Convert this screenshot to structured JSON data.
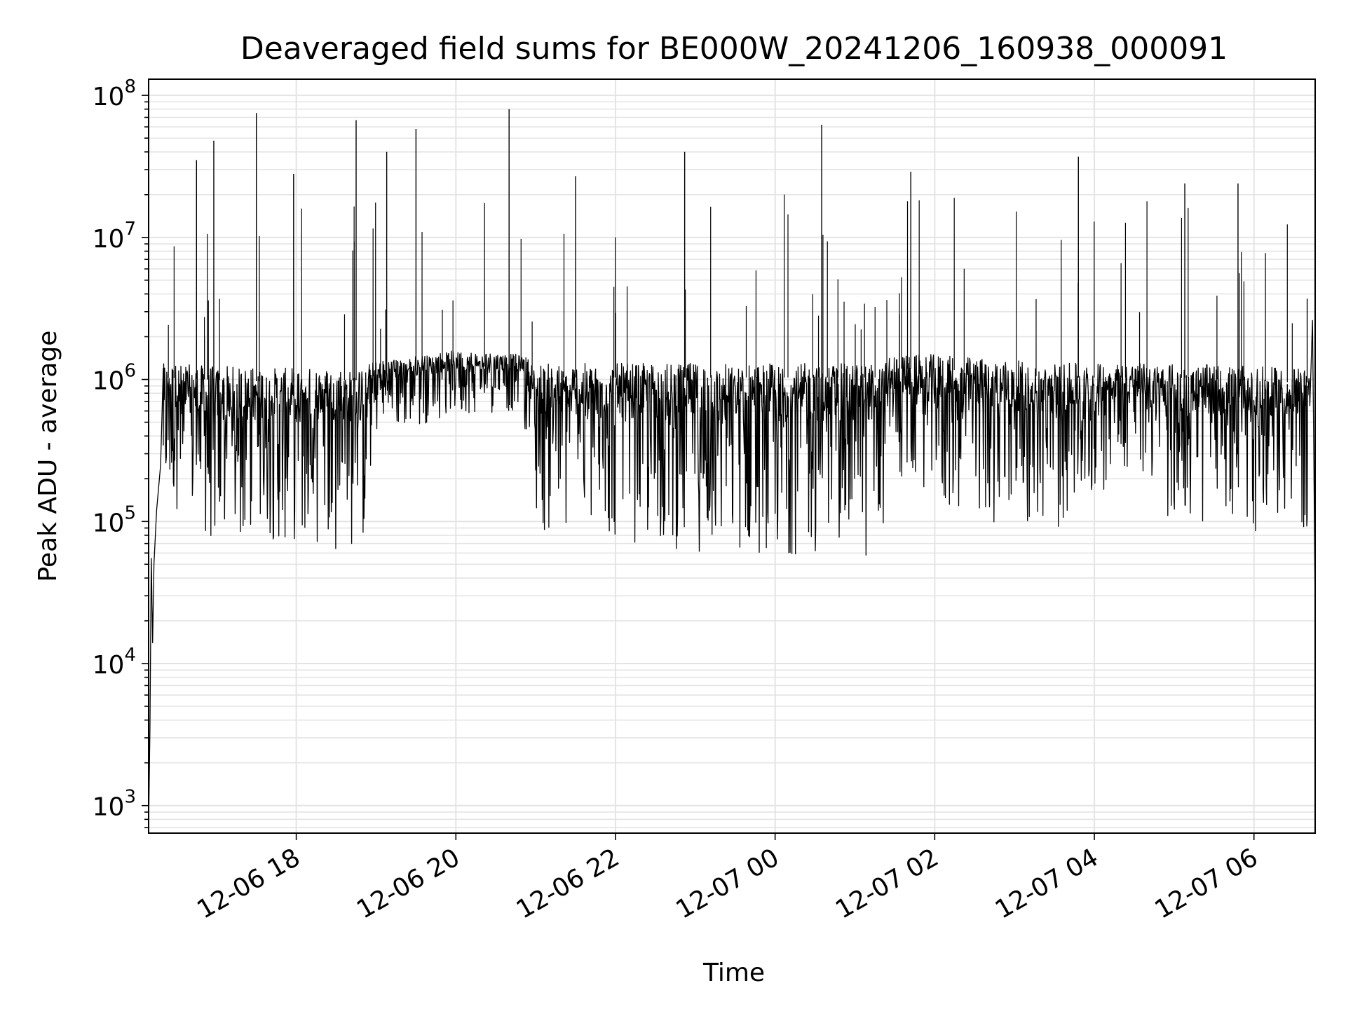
{
  "chart_data": {
    "type": "line",
    "title": "Deaveraged field sums for BE000W_20241206_160938_000091",
    "xlabel": "Time",
    "ylabel": "Peak ADU - average",
    "yscale": "log",
    "ylim": [
      640,
      130000000
    ],
    "xlim": [
      "2024-12-06 16:09",
      "2024-12-07 06:46"
    ],
    "grid": true,
    "line_color": "#000000",
    "x_ticks": [
      {
        "time": "2024-12-06 18:00",
        "label": "12-06 18"
      },
      {
        "time": "2024-12-06 20:00",
        "label": "12-06 20"
      },
      {
        "time": "2024-12-06 22:00",
        "label": "12-06 22"
      },
      {
        "time": "2024-12-07 00:00",
        "label": "12-07 00"
      },
      {
        "time": "2024-12-07 02:00",
        "label": "12-07 02"
      },
      {
        "time": "2024-12-07 04:00",
        "label": "12-07 04"
      },
      {
        "time": "2024-12-07 06:00",
        "label": "12-07 06"
      }
    ],
    "y_ticks": [
      {
        "value": 1000,
        "base": "10",
        "exp": "3"
      },
      {
        "value": 10000,
        "base": "10",
        "exp": "4"
      },
      {
        "value": 100000,
        "base": "10",
        "exp": "5"
      },
      {
        "value": 1000000,
        "base": "10",
        "exp": "6"
      },
      {
        "value": 10000000,
        "base": "10",
        "exp": "7"
      },
      {
        "value": 100000000,
        "base": "10",
        "exp": "8"
      }
    ],
    "series": [
      {
        "values_summary": "dense noisy time series",
        "band": [
          {
            "time": "2024-12-06 16:20",
            "upper": 1300000,
            "lower": 150000
          },
          {
            "time": "2024-12-06 17:00",
            "upper": 1250000,
            "lower": 60000
          },
          {
            "time": "2024-12-06 18:00",
            "upper": 1200000,
            "lower": 70000
          },
          {
            "time": "2024-12-06 18:50",
            "upper": 1250000,
            "lower": 60000
          },
          {
            "time": "2024-12-06 19:00",
            "upper": 1350000,
            "lower": 400000
          },
          {
            "time": "2024-12-06 20:00",
            "upper": 1600000,
            "lower": 550000
          },
          {
            "time": "2024-12-06 20:50",
            "upper": 1500000,
            "lower": 600000
          },
          {
            "time": "2024-12-06 21:00",
            "upper": 1300000,
            "lower": 80000
          },
          {
            "time": "2024-12-06 23:00",
            "upper": 1300000,
            "lower": 60000
          },
          {
            "time": "2024-12-07 01:20",
            "upper": 1300000,
            "lower": 55000
          },
          {
            "time": "2024-12-07 01:30",
            "upper": 1500000,
            "lower": 200000
          },
          {
            "time": "2024-12-07 02:00",
            "upper": 1500000,
            "lower": 120000
          },
          {
            "time": "2024-12-07 03:30",
            "upper": 1300000,
            "lower": 80000
          },
          {
            "time": "2024-12-07 04:30",
            "upper": 1300000,
            "lower": 250000
          },
          {
            "time": "2024-12-07 05:00",
            "upper": 1300000,
            "lower": 90000
          },
          {
            "time": "2024-12-07 06:30",
            "upper": 1200000,
            "lower": 80000
          }
        ],
        "spikes": [
          {
            "time": "2024-12-06 16:45",
            "value": 35000000
          },
          {
            "time": "2024-12-06 16:58",
            "value": 48000000
          },
          {
            "time": "2024-12-06 17:30",
            "value": 75000000
          },
          {
            "time": "2024-12-06 17:58",
            "value": 28000000
          },
          {
            "time": "2024-12-06 18:45",
            "value": 67000000
          },
          {
            "time": "2024-12-06 19:08",
            "value": 40000000
          },
          {
            "time": "2024-12-06 19:30",
            "value": 58000000
          },
          {
            "time": "2024-12-06 20:40",
            "value": 80000000
          },
          {
            "time": "2024-12-06 21:30",
            "value": 27000000
          },
          {
            "time": "2024-12-06 22:52",
            "value": 40000000
          },
          {
            "time": "2024-12-07 00:35",
            "value": 62000000
          },
          {
            "time": "2024-12-07 01:42",
            "value": 29000000
          },
          {
            "time": "2024-12-07 03:48",
            "value": 37000000
          },
          {
            "time": "2024-12-07 05:08",
            "value": 24000000
          },
          {
            "time": "2024-12-07 05:48",
            "value": 24000000
          },
          {
            "time": "2024-12-07 06:40",
            "value": 3700000
          }
        ]
      }
    ]
  }
}
